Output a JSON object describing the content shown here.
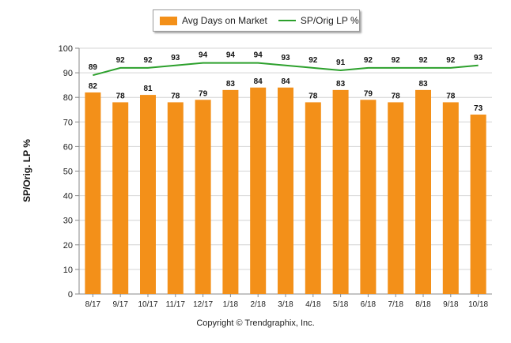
{
  "chart_data": {
    "type": "bar",
    "title": "",
    "xlabel": "",
    "ylabel": "SP/Orig. LP %",
    "ylim": [
      0,
      100
    ],
    "yticks": [
      0,
      10,
      20,
      30,
      40,
      50,
      60,
      70,
      80,
      90,
      100
    ],
    "grid": true,
    "legend_position": "top-center",
    "categories": [
      "8/17",
      "9/17",
      "10/17",
      "11/17",
      "12/17",
      "1/18",
      "2/18",
      "3/18",
      "4/18",
      "5/18",
      "6/18",
      "7/18",
      "8/18",
      "9/18",
      "10/18"
    ],
    "series": [
      {
        "name": "Avg Days on Market",
        "type": "bar",
        "color": "#f39019",
        "values": [
          82,
          78,
          81,
          78,
          79,
          83,
          84,
          84,
          78,
          83,
          79,
          78,
          83,
          78,
          73
        ]
      },
      {
        "name": "SP/Orig LP %",
        "type": "line",
        "color": "#2ca02c",
        "values": [
          89,
          92,
          92,
          93,
          94,
          94,
          94,
          93,
          92,
          91,
          92,
          92,
          92,
          92,
          93
        ]
      }
    ]
  },
  "footer": {
    "copyright": "Copyright © Trendgraphix, Inc."
  }
}
